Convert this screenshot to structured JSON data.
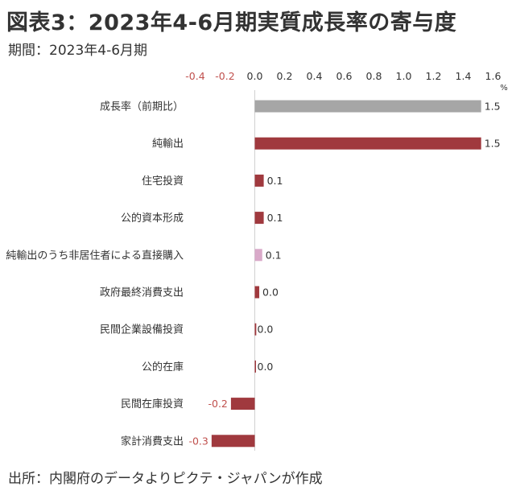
{
  "title": "図表3：2023年4-6月期実質成長率の寄与度",
  "subtitle": "期間：2023年4-6月期",
  "source": "出所：内閣府のデータよりピクテ・ジャパンが作成",
  "colors": {
    "gray": "#a6a6a6",
    "bar": "#a0393e",
    "light": "#d9a9c9",
    "negative_tick": "#c0504d",
    "tick": "#333333"
  },
  "chart_data": {
    "type": "bar",
    "orientation": "horizontal",
    "unit": "%",
    "xlim": [
      -0.4,
      1.6
    ],
    "ticks": [
      "-0.4",
      "-0.2",
      "0.0",
      "0.2",
      "0.4",
      "0.6",
      "0.8",
      "1.0",
      "1.2",
      "1.4",
      "1.6"
    ],
    "categories": [
      "成長率（前期比）",
      "純輸出",
      "住宅投資",
      "公的資本形成",
      "純輸出のうち非居住者による直接購入",
      "政府最終消費支出",
      "民間企業設備投資",
      "公的在庫",
      "民間在庫投資",
      "家計消費支出"
    ],
    "values": [
      1.52,
      1.52,
      0.06,
      0.06,
      0.05,
      0.03,
      0.01,
      0.0,
      -0.16,
      -0.29
    ],
    "labels": [
      "1.5",
      "1.5",
      "0.1",
      "0.1",
      "0.1",
      "0.0",
      "0.0",
      "0.0",
      "-0.2",
      "-0.3"
    ],
    "bar_colors": [
      "#a6a6a6",
      "#a0393e",
      "#a0393e",
      "#a0393e",
      "#d9a9c9",
      "#a0393e",
      "#a0393e",
      "#a0393e",
      "#a0393e",
      "#a0393e"
    ]
  }
}
